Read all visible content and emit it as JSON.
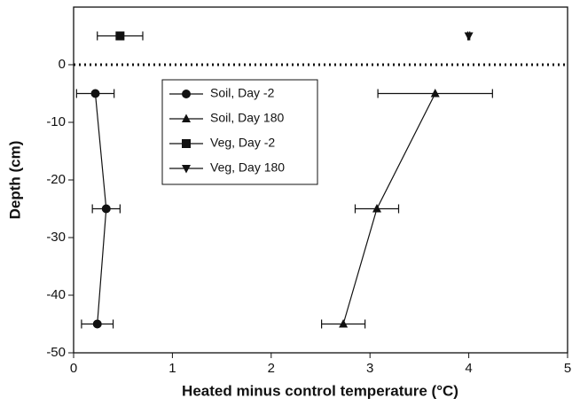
{
  "chart_data": {
    "type": "scatter",
    "xlabel": "Heated minus control temperature (°C)",
    "ylabel": "Depth (cm)",
    "xlim": [
      0,
      5
    ],
    "xticks": [
      0,
      1,
      2,
      3,
      4,
      5
    ],
    "ylim": [
      -50,
      10
    ],
    "yticks": [
      -50,
      -40,
      -30,
      -20,
      -10,
      0
    ],
    "reference_line": 0,
    "color": "#111111",
    "series": [
      {
        "name": "Soil, Day -2",
        "marker": "circle",
        "line": true,
        "x": [
          0.22,
          0.33,
          0.24
        ],
        "y": [
          -5,
          -25,
          -45
        ],
        "xerr": [
          0.19,
          0.14,
          0.16
        ]
      },
      {
        "name": "Soil, Day 180",
        "marker": "triangle-up",
        "line": true,
        "x": [
          3.66,
          3.07,
          2.73
        ],
        "y": [
          -5,
          -25,
          -45
        ],
        "xerr": [
          0.58,
          0.22,
          0.22
        ]
      },
      {
        "name": "Veg, Day -2",
        "marker": "square",
        "line": false,
        "x": [
          0.47
        ],
        "y": [
          5
        ],
        "xerr": [
          0.23
        ]
      },
      {
        "name": "Veg, Day 180",
        "marker": "triangle-down",
        "line": false,
        "x": [
          4.0
        ],
        "y": [
          5
        ],
        "xerr": [
          0.01
        ]
      }
    ]
  }
}
